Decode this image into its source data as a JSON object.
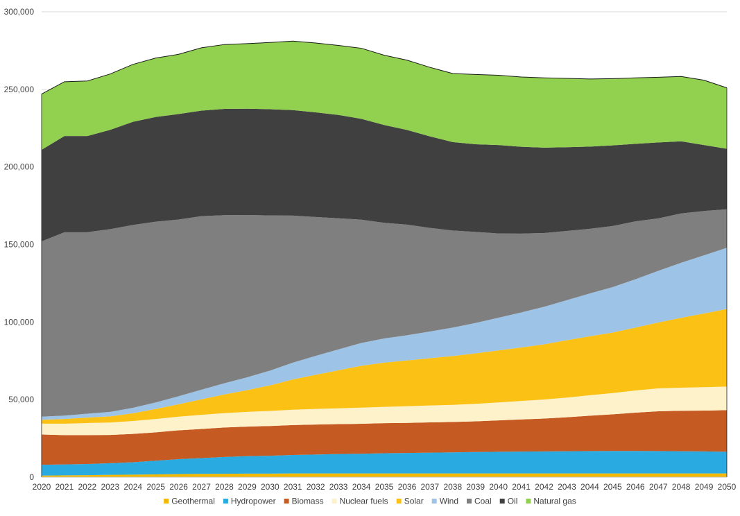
{
  "chart_data": {
    "type": "area",
    "stacked": true,
    "title": "",
    "xlabel": "",
    "ylabel": "",
    "ylim": [
      0,
      300000
    ],
    "yticks": [
      0,
      50000,
      100000,
      150000,
      200000,
      250000,
      300000
    ],
    "ytick_labels": [
      "0",
      "50,000",
      "100,000",
      "150,000",
      "200,000",
      "250,000",
      "300,000"
    ],
    "grid": "horizontal",
    "legend_position": "bottom",
    "x": [
      "2020",
      "2021",
      "2022",
      "2023",
      "2024",
      "2025",
      "2026",
      "2027",
      "2028",
      "2029",
      "2030",
      "2031",
      "2032",
      "2033",
      "2034",
      "2035",
      "2036",
      "2037",
      "2038",
      "2039",
      "2040",
      "2041",
      "2042",
      "2043",
      "2044",
      "2045",
      "2046",
      "2047",
      "2048",
      "2049",
      "2050"
    ],
    "series": [
      {
        "name": "Geothermal",
        "color": "#F5B800",
        "values": [
          1000,
          1200,
          1300,
          1500,
          1600,
          1800,
          2000,
          2100,
          2200,
          2300,
          2300,
          2400,
          2400,
          2400,
          2400,
          2400,
          2400,
          2400,
          2400,
          2400,
          2400,
          2400,
          2400,
          2400,
          2400,
          2400,
          2400,
          2400,
          2400,
          2400,
          2400
        ]
      },
      {
        "name": "Hydropower",
        "color": "#29ABE2",
        "values": [
          7000,
          7000,
          7200,
          7500,
          8000,
          8800,
          9600,
          10200,
          10800,
          11200,
          11500,
          11900,
          12200,
          12500,
          12700,
          13000,
          13200,
          13400,
          13600,
          13800,
          14000,
          14100,
          14200,
          14300,
          14400,
          14500,
          14500,
          14400,
          14300,
          14200,
          14000
        ]
      },
      {
        "name": "Biomass",
        "color": "#C55A22",
        "values": [
          19500,
          18900,
          18600,
          18200,
          18300,
          18300,
          18600,
          18800,
          19000,
          19100,
          19200,
          19300,
          19300,
          19300,
          19300,
          19400,
          19400,
          19500,
          19600,
          19800,
          20200,
          20700,
          21200,
          21900,
          22800,
          23600,
          24700,
          25700,
          26100,
          26300,
          26800
        ]
      },
      {
        "name": "Nuclear fuels",
        "color": "#FEF2CB",
        "values": [
          7000,
          7400,
          7800,
          8000,
          8300,
          8600,
          8800,
          9100,
          9300,
          9500,
          9700,
          9900,
          10100,
          10200,
          10400,
          10500,
          10700,
          10900,
          11000,
          11300,
          11600,
          11900,
          12300,
          12700,
          13200,
          13700,
          14300,
          14700,
          14900,
          15100,
          15200
        ]
      },
      {
        "name": "Solar",
        "color": "#FBC115",
        "values": [
          2500,
          3000,
          3500,
          4000,
          5000,
          6500,
          8000,
          10000,
          12000,
          14000,
          16500,
          19500,
          22000,
          24500,
          27000,
          28500,
          29500,
          30500,
          31500,
          32500,
          33500,
          34500,
          35500,
          37000,
          38000,
          39000,
          40500,
          42500,
          45000,
          47500,
          50000
        ]
      },
      {
        "name": "Wind",
        "color": "#9DC3E6",
        "values": [
          2000,
          2200,
          2500,
          2900,
          3500,
          4200,
          5200,
          6200,
          7200,
          8300,
          9500,
          10800,
          12200,
          13500,
          14700,
          15600,
          16300,
          17200,
          18300,
          19600,
          21100,
          22600,
          24200,
          25800,
          27600,
          29300,
          31200,
          33300,
          35500,
          37500,
          39500
        ]
      },
      {
        "name": "Coal",
        "color": "#7F7F7F",
        "values": [
          113000,
          118200,
          117000,
          117800,
          117900,
          116500,
          113900,
          111900,
          108400,
          104600,
          100000,
          94800,
          89500,
          84500,
          79500,
          74600,
          71300,
          66800,
          62600,
          58700,
          54300,
          50800,
          47600,
          44600,
          41700,
          39400,
          37300,
          33800,
          31800,
          28600,
          24800
        ]
      },
      {
        "name": "Oil",
        "color": "#404040",
        "values": [
          59000,
          62000,
          62000,
          64000,
          66500,
          67500,
          68000,
          68000,
          68500,
          68500,
          68500,
          68000,
          67500,
          66600,
          65000,
          63000,
          61000,
          59000,
          57000,
          56500,
          57000,
          56000,
          55000,
          54000,
          53000,
          52000,
          50000,
          49000,
          46500,
          42500,
          39000
        ]
      },
      {
        "name": "Natural gas",
        "color": "#92D050",
        "values": [
          36000,
          35000,
          35500,
          36000,
          37000,
          38000,
          38500,
          40500,
          41500,
          42000,
          43000,
          44500,
          44700,
          44800,
          45500,
          45000,
          45000,
          44500,
          44200,
          45000,
          45000,
          45000,
          45000,
          44400,
          43600,
          43000,
          42500,
          42000,
          41800,
          41800,
          39300
        ]
      }
    ]
  }
}
